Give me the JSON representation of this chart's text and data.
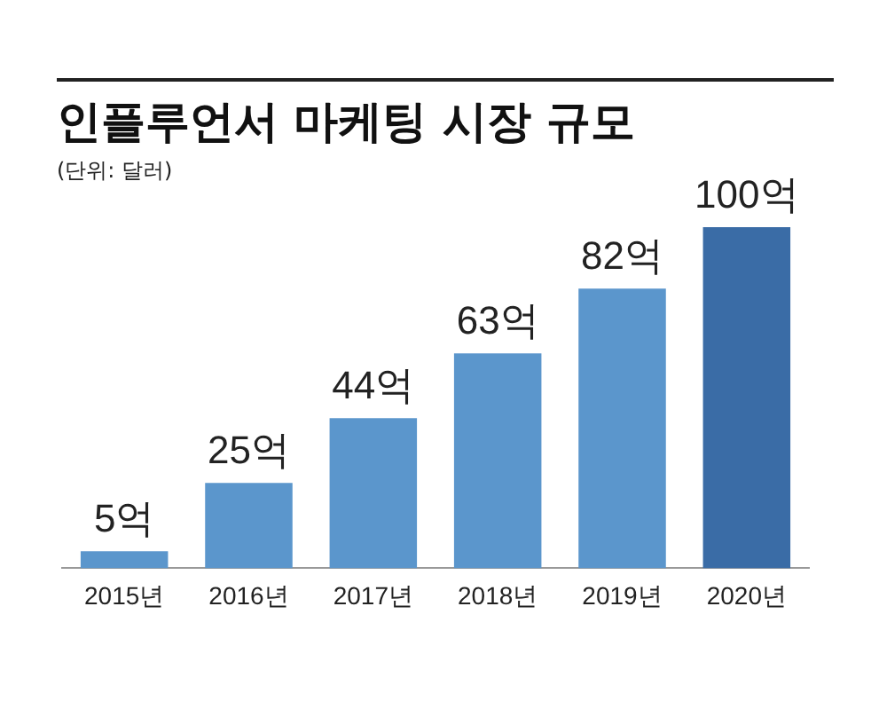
{
  "chart_data": {
    "type": "bar",
    "title": "인플루언서 마케팅 시장 규모",
    "subtitle": "(단위: 달러)",
    "categories": [
      "2015년",
      "2016년",
      "2017년",
      "2018년",
      "2019년",
      "2020년"
    ],
    "values": [
      5,
      25,
      44,
      63,
      82,
      100
    ],
    "colors": [
      "#5b96cc",
      "#5b96cc",
      "#5b96cc",
      "#5b96cc",
      "#5b96cc",
      "#3a6ca6"
    ],
    "value_labels": [
      "5억",
      "25억",
      "44억",
      "63억",
      "82억",
      "100억"
    ],
    "grid": false,
    "legend": false
  }
}
